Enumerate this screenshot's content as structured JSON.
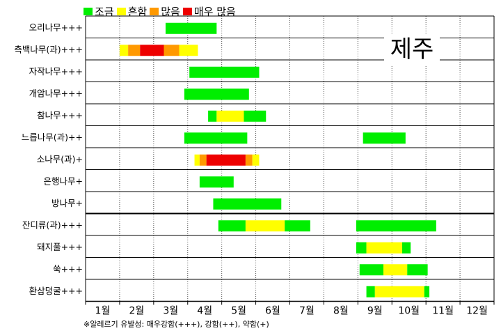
{
  "legend": [
    {
      "label": "조금",
      "color": "#00ee00"
    },
    {
      "label": "흔함",
      "color": "#ffff00"
    },
    {
      "label": "많음",
      "color": "#ff9900"
    },
    {
      "label": "매우 많음",
      "color": "#ee0000"
    }
  ],
  "region_label": "제주",
  "footnote": "※알레르기 유발성: 매우강함(+++), 강함(++), 약함(+)",
  "chart_data": {
    "type": "gantt",
    "months": [
      "1월",
      "2월",
      "3월",
      "4월",
      "5월",
      "6월",
      "7월",
      "8월",
      "9월",
      "10월",
      "11월",
      "12월"
    ],
    "x_range": [
      0,
      12
    ],
    "x_unit": "month (0 = start of January, 12 = end of December)",
    "section_divider_after_row": 8,
    "rows": [
      {
        "label": "오리나무+++",
        "segments": [
          {
            "start": 2.35,
            "end": 3.85,
            "level": 0
          }
        ]
      },
      {
        "label": "측백나무(과)+++",
        "segments": [
          {
            "start": 1.0,
            "end": 1.25,
            "level": 1
          },
          {
            "start": 1.25,
            "end": 1.6,
            "level": 2
          },
          {
            "start": 1.6,
            "end": 2.3,
            "level": 3
          },
          {
            "start": 2.3,
            "end": 2.75,
            "level": 2
          },
          {
            "start": 2.75,
            "end": 3.3,
            "level": 1
          }
        ]
      },
      {
        "label": "자작나무+++",
        "segments": [
          {
            "start": 3.05,
            "end": 5.1,
            "level": 0
          }
        ]
      },
      {
        "label": "개암나무+++",
        "segments": [
          {
            "start": 2.9,
            "end": 4.8,
            "level": 0
          }
        ]
      },
      {
        "label": "참나무+++",
        "segments": [
          {
            "start": 3.6,
            "end": 3.85,
            "level": 0
          },
          {
            "start": 3.85,
            "end": 4.65,
            "level": 1
          },
          {
            "start": 4.65,
            "end": 5.3,
            "level": 0
          }
        ]
      },
      {
        "label": "느릅나무(과)++",
        "segments": [
          {
            "start": 2.9,
            "end": 4.75,
            "level": 0
          },
          {
            "start": 8.15,
            "end": 9.4,
            "level": 0
          }
        ]
      },
      {
        "label": "소나무(과)+",
        "segments": [
          {
            "start": 3.2,
            "end": 3.35,
            "level": 1
          },
          {
            "start": 3.35,
            "end": 3.55,
            "level": 2
          },
          {
            "start": 3.55,
            "end": 4.7,
            "level": 3
          },
          {
            "start": 4.7,
            "end": 4.9,
            "level": 2
          },
          {
            "start": 4.9,
            "end": 5.1,
            "level": 1
          }
        ]
      },
      {
        "label": "은행나무+",
        "segments": [
          {
            "start": 3.35,
            "end": 4.35,
            "level": 0
          }
        ]
      },
      {
        "label": "방나무+",
        "segments": [
          {
            "start": 3.75,
            "end": 5.75,
            "level": 0
          }
        ]
      },
      {
        "label": "잔디류(과)+++",
        "segments": [
          {
            "start": 3.9,
            "end": 4.7,
            "level": 0
          },
          {
            "start": 4.7,
            "end": 5.85,
            "level": 1
          },
          {
            "start": 5.85,
            "end": 6.6,
            "level": 0
          },
          {
            "start": 7.95,
            "end": 10.3,
            "level": 0
          }
        ]
      },
      {
        "label": "돼지풀+++",
        "segments": [
          {
            "start": 7.95,
            "end": 8.25,
            "level": 0
          },
          {
            "start": 8.25,
            "end": 9.3,
            "level": 1
          },
          {
            "start": 9.3,
            "end": 9.55,
            "level": 0
          }
        ]
      },
      {
        "label": "쑥+++",
        "segments": [
          {
            "start": 8.05,
            "end": 8.75,
            "level": 0
          },
          {
            "start": 8.75,
            "end": 9.45,
            "level": 1
          },
          {
            "start": 9.45,
            "end": 10.05,
            "level": 0
          }
        ]
      },
      {
        "label": "환삼덩굴+++",
        "segments": [
          {
            "start": 8.25,
            "end": 8.5,
            "level": 0
          },
          {
            "start": 8.5,
            "end": 9.95,
            "level": 1
          },
          {
            "start": 9.95,
            "end": 10.1,
            "level": 0
          }
        ]
      }
    ]
  }
}
